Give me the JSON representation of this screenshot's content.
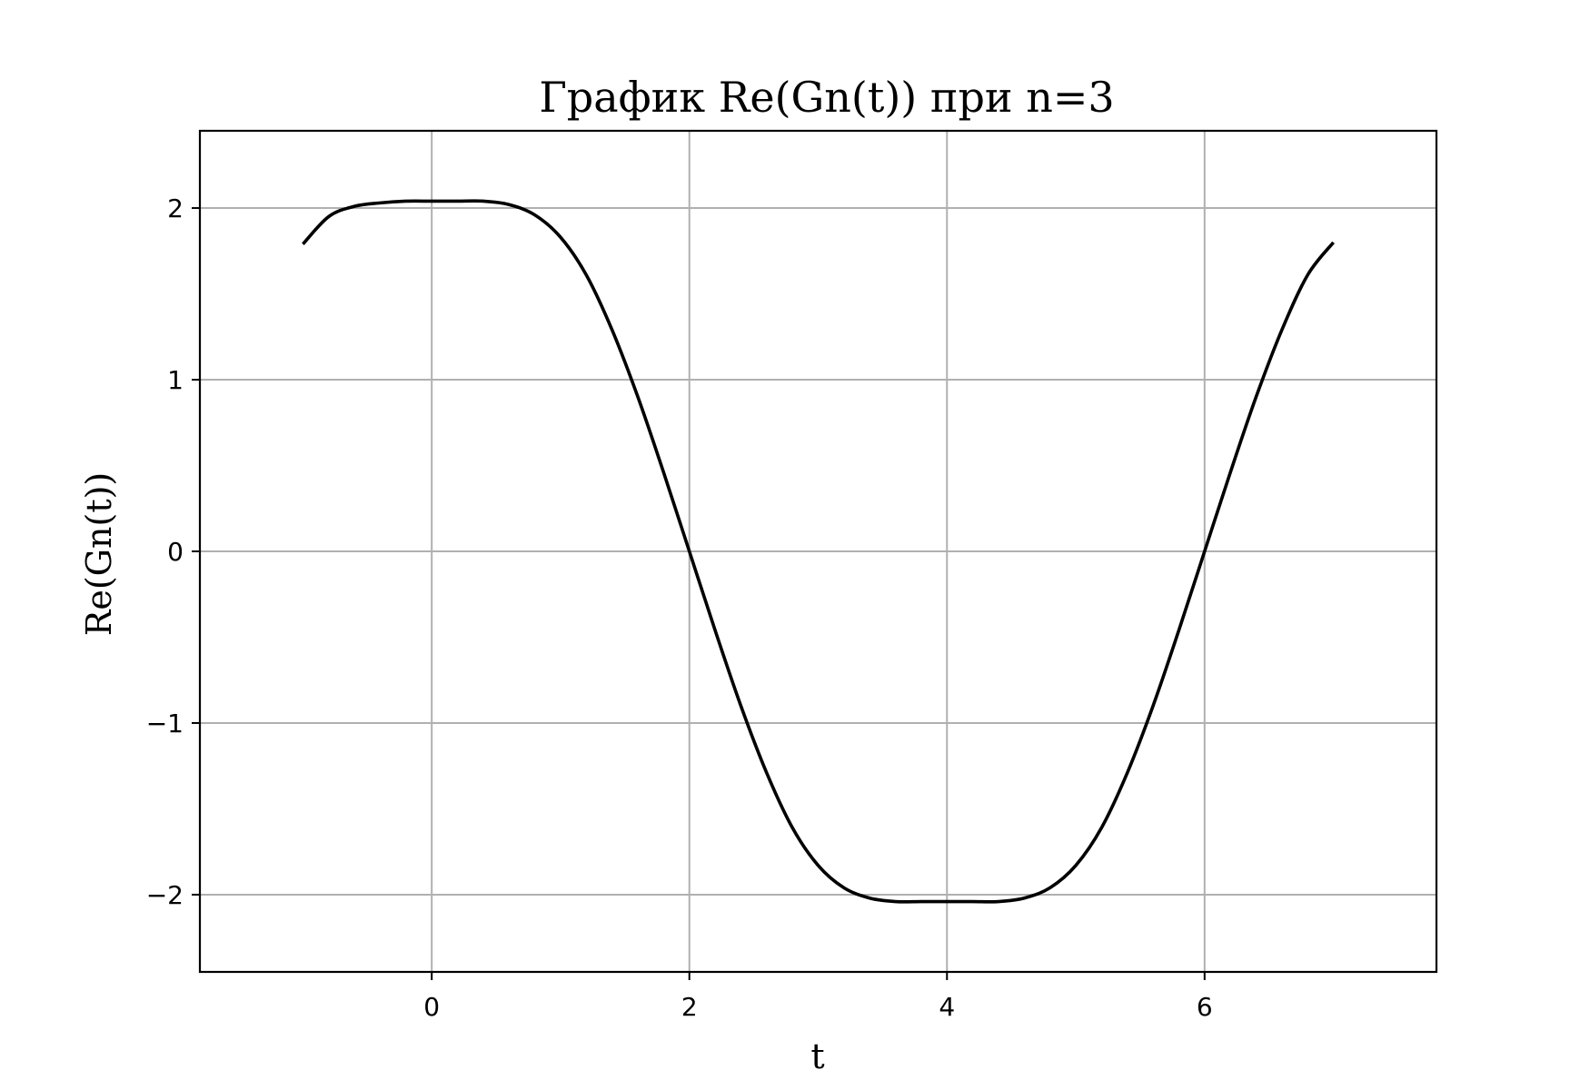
{
  "chart_data": {
    "type": "line",
    "title": "График Re(Gn(t)) при n=3",
    "xlabel": "t",
    "ylabel": "Re(Gn(t))",
    "xlim": [
      -1.8,
      7.8
    ],
    "ylim": [
      -2.45,
      2.45
    ],
    "grid": true,
    "legend": "none",
    "x_ticks": [
      0,
      2,
      4,
      6
    ],
    "x_tick_labels": [
      "0",
      "2",
      "4",
      "6"
    ],
    "y_ticks": [
      -2,
      -1,
      0,
      1,
      2
    ],
    "y_tick_labels": [
      "−2",
      "−1",
      "0",
      "1",
      "2"
    ],
    "series": [
      {
        "color": "#000000",
        "x": [
          -1.0,
          -0.8,
          -0.6,
          -0.4,
          -0.2,
          0.0,
          0.2,
          0.4,
          0.6,
          0.8,
          1.0,
          1.2,
          1.4,
          1.6,
          1.8,
          2.0,
          2.2,
          2.4,
          2.6,
          2.8,
          3.0,
          3.2,
          3.4,
          3.6,
          3.8,
          4.0,
          4.2,
          4.4,
          4.6,
          4.8,
          5.0,
          5.2,
          5.4,
          5.6,
          5.8,
          6.0,
          6.2,
          6.4,
          6.6,
          6.8,
          7.0
        ],
        "values": [
          1.79,
          1.95,
          2.01,
          2.03,
          2.04,
          2.04,
          2.04,
          2.04,
          2.02,
          1.96,
          1.83,
          1.61,
          1.29,
          0.9,
          0.46,
          0.0,
          -0.46,
          -0.9,
          -1.29,
          -1.61,
          -1.83,
          -1.96,
          -2.02,
          -2.04,
          -2.04,
          -2.04,
          -2.04,
          -2.04,
          -2.02,
          -1.96,
          -1.83,
          -1.61,
          -1.29,
          -0.9,
          -0.46,
          0.0,
          0.46,
          0.9,
          1.29,
          1.61,
          1.8
        ]
      }
    ]
  }
}
